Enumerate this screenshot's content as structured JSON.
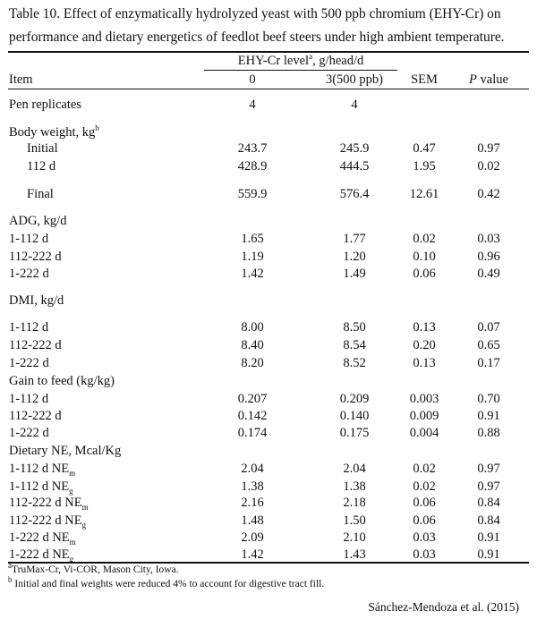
{
  "caption": {
    "line1": "Table 10. Effect of enzymatically hydrolyzed yeast with 500 ppb chromium (EHY-Cr) on",
    "line2": "performance and dietary energetics of feedlot beef steers under high ambient temperature."
  },
  "header": {
    "group_label": "EHY-Cr level",
    "group_sup": "a",
    "group_unit": ", g/head/d",
    "item": "Item",
    "col0": "0",
    "col1": "3(500 ppb)",
    "sem": "SEM",
    "p_italic": "P",
    "p_rest": " value"
  },
  "rows": [
    {
      "type": "data",
      "label": "Pen replicates",
      "v0": "4",
      "v1": "4",
      "sem": "",
      "p": ""
    },
    {
      "type": "header",
      "label": "Body weight, kg",
      "sup": "b"
    },
    {
      "type": "data",
      "label": "Initial",
      "indent": true,
      "v0": "243.7",
      "v1": "245.9",
      "sem": "0.47",
      "p": "0.97"
    },
    {
      "type": "data",
      "label": "112 d",
      "indent": true,
      "v0": "428.9",
      "v1": "444.5",
      "sem": "1.95",
      "p": "0.02"
    },
    {
      "type": "data",
      "label": "Final",
      "indent": true,
      "v0": "559.9",
      "v1": "576.4",
      "sem": "12.61",
      "p": "0.42"
    },
    {
      "type": "header",
      "label": "ADG, kg/d"
    },
    {
      "type": "data",
      "label": "1-112 d",
      "v0": "1.65",
      "v1": "1.77",
      "sem": "0.02",
      "p": "0.03"
    },
    {
      "type": "data",
      "label": "112-222 d",
      "v0": "1.19",
      "v1": "1.20",
      "sem": "0.10",
      "p": "0.96"
    },
    {
      "type": "data",
      "label": "1-222 d",
      "v0": "1.42",
      "v1": "1.49",
      "sem": "0.06",
      "p": "0.49"
    },
    {
      "type": "header",
      "label": "DMI, kg/d"
    },
    {
      "type": "data",
      "label": "1-112 d",
      "v0": "8.00",
      "v1": "8.50",
      "sem": "0.13",
      "p": "0.07"
    },
    {
      "type": "data",
      "label": "112-222 d",
      "v0": "8.40",
      "v1": "8.54",
      "sem": "0.20",
      "p": "0.65"
    },
    {
      "type": "data",
      "label": "1-222 d",
      "v0": "8.20",
      "v1": "8.52",
      "sem": "0.13",
      "p": "0.17"
    },
    {
      "type": "header",
      "label": "Gain to feed (kg/kg)"
    },
    {
      "type": "data",
      "label": "1-112 d",
      "v0": "0.207",
      "v1": "0.209",
      "sem": "0.003",
      "p": "0.70"
    },
    {
      "type": "data",
      "label": "112-222 d",
      "v0": "0.142",
      "v1": "0.140",
      "sem": "0.009",
      "p": "0.91"
    },
    {
      "type": "data",
      "label": "1-222 d",
      "v0": "0.174",
      "v1": "0.175",
      "sem": "0.004",
      "p": "0.88"
    },
    {
      "type": "header",
      "label": "Dietary NE, Mcal/Kg"
    },
    {
      "type": "data",
      "label": "1-112 d NE",
      "sub": "m",
      "v0": "2.04",
      "v1": "2.04",
      "sem": "0.02",
      "p": "0.97"
    },
    {
      "type": "data",
      "label": "1-112 d NE",
      "sub": "g",
      "v0": "1.38",
      "v1": "1.38",
      "sem": "0.02",
      "p": "0.97"
    },
    {
      "type": "data",
      "label": "112-222 d NE",
      "sub": "m",
      "v0": "2.16",
      "v1": "2.18",
      "sem": "0.06",
      "p": "0.84"
    },
    {
      "type": "data",
      "label": "112-222 d NE",
      "sub": "g",
      "v0": "1.48",
      "v1": "1.50",
      "sem": "0.06",
      "p": "0.84"
    },
    {
      "type": "data",
      "label": "1-222 d NE",
      "sub": "m",
      "v0": "2.09",
      "v1": "2.10",
      "sem": "0.03",
      "p": "0.91"
    },
    {
      "type": "data",
      "label": "1-222 d NE",
      "sub": "g",
      "v0": "1.42",
      "v1": "1.43",
      "sem": "0.03",
      "p": "0.91"
    }
  ],
  "footnotes": {
    "a_mark": "a",
    "a_text": "TruMax-Cr, Vi-COR, Mason City, Iowa.",
    "b_mark": "b",
    "b_text": " Initial and final weights were reduced 4% to account for digestive tract fill."
  },
  "citation": "Sánchez-Mendoza et al. (2015)"
}
